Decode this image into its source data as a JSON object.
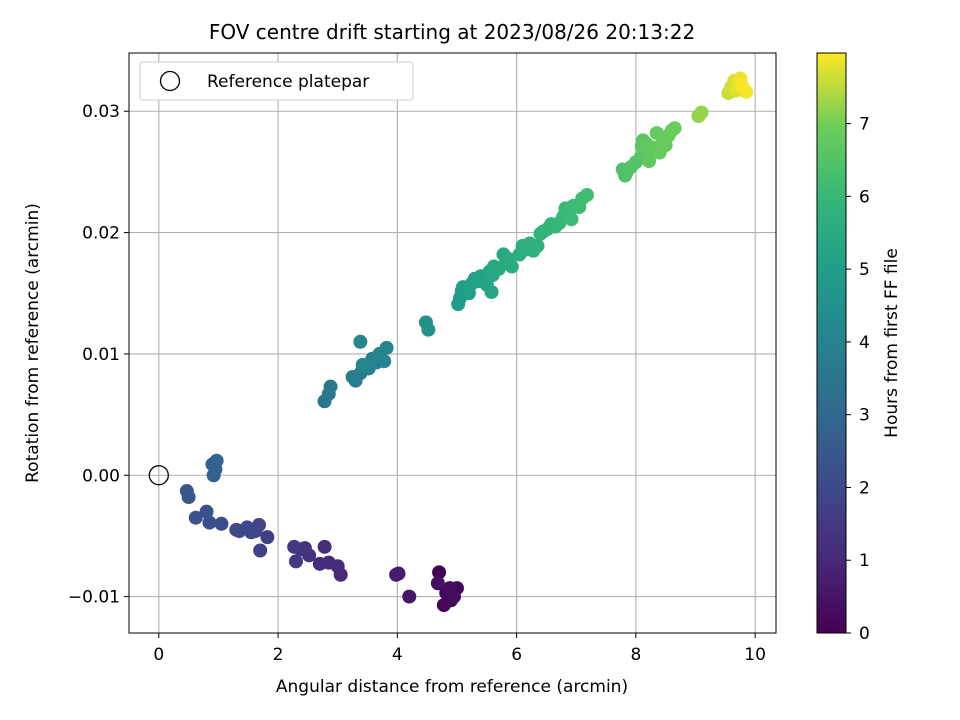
{
  "chart_data": {
    "type": "scatter",
    "title": "FOV centre drift starting at 2023/08/26 20:13:22",
    "xlabel": "Angular distance from reference (arcmin)",
    "ylabel": "Rotation from reference (arcmin)",
    "xlim": [
      -0.5,
      10.35
    ],
    "ylim": [
      -0.013,
      0.0348
    ],
    "xticks": [
      0,
      2,
      4,
      6,
      8,
      10
    ],
    "yticks": [
      -0.01,
      0.0,
      0.01,
      0.02,
      0.03
    ],
    "ytick_labels": [
      "−0.01",
      "0.00",
      "0.01",
      "0.02",
      "0.03"
    ],
    "grid": true,
    "legend": {
      "placement": "top-left",
      "entries": [
        "Reference platepar"
      ]
    },
    "reference_point": {
      "x": 0,
      "y": 0
    },
    "colorbar": {
      "label": "Hours from first FF file",
      "range": [
        0,
        7.97
      ],
      "ticks": [
        0,
        1,
        2,
        3,
        4,
        5,
        6,
        7
      ],
      "colormap": "viridis"
    },
    "points": [
      [
        4.7,
        -0.008,
        0.05
      ],
      [
        4.82,
        -0.0097,
        0.08
      ],
      [
        4.78,
        -0.0107,
        0.1
      ],
      [
        4.9,
        -0.0103,
        0.15
      ],
      [
        5.0,
        -0.0093,
        0.2
      ],
      [
        4.95,
        -0.01,
        0.25
      ],
      [
        4.88,
        -0.0093,
        0.3
      ],
      [
        4.68,
        -0.0089,
        0.35
      ],
      [
        4.2,
        -0.01,
        0.6
      ],
      [
        4.02,
        -0.0081,
        0.7
      ],
      [
        3.98,
        -0.0082,
        0.75
      ],
      [
        3.05,
        -0.0082,
        1.0
      ],
      [
        3.0,
        -0.0075,
        1.05
      ],
      [
        2.85,
        -0.0072,
        1.1
      ],
      [
        2.7,
        -0.0073,
        1.15
      ],
      [
        2.78,
        -0.0059,
        1.2
      ],
      [
        2.52,
        -0.0066,
        1.3
      ],
      [
        2.45,
        -0.006,
        1.35
      ],
      [
        2.38,
        -0.0061,
        1.4
      ],
      [
        2.3,
        -0.0071,
        1.45
      ],
      [
        2.27,
        -0.0059,
        1.5
      ],
      [
        1.82,
        -0.0051,
        1.7
      ],
      [
        1.7,
        -0.0062,
        1.75
      ],
      [
        1.68,
        -0.0041,
        1.8
      ],
      [
        1.62,
        -0.0046,
        1.85
      ],
      [
        1.55,
        -0.0047,
        1.9
      ],
      [
        1.48,
        -0.0043,
        1.95
      ],
      [
        1.35,
        -0.0046,
        2.0
      ],
      [
        1.3,
        -0.0045,
        2.05
      ],
      [
        1.05,
        -0.004,
        2.15
      ],
      [
        0.85,
        -0.0039,
        2.2
      ],
      [
        0.8,
        -0.003,
        2.25
      ],
      [
        0.62,
        -0.0035,
        2.3
      ],
      [
        0.5,
        -0.0018,
        2.4
      ],
      [
        0.47,
        -0.0013,
        2.45
      ],
      [
        0.92,
        0.0,
        2.7
      ],
      [
        0.95,
        0.0005,
        2.75
      ],
      [
        0.9,
        0.0009,
        2.8
      ],
      [
        0.97,
        0.0012,
        2.85
      ],
      [
        2.78,
        0.0061,
        3.5
      ],
      [
        2.85,
        0.0067,
        3.55
      ],
      [
        2.88,
        0.0073,
        3.6
      ],
      [
        3.25,
        0.0081,
        3.75
      ],
      [
        3.3,
        0.0078,
        3.8
      ],
      [
        3.38,
        0.0084,
        3.82
      ],
      [
        3.45,
        0.009,
        3.85
      ],
      [
        3.52,
        0.0088,
        3.9
      ],
      [
        3.58,
        0.0096,
        3.95
      ],
      [
        3.65,
        0.0093,
        4.0
      ],
      [
        3.7,
        0.01,
        4.05
      ],
      [
        3.78,
        0.0094,
        4.08
      ],
      [
        3.82,
        0.0105,
        4.1
      ],
      [
        3.38,
        0.011,
        4.12
      ],
      [
        3.42,
        0.0091,
        4.15
      ],
      [
        4.48,
        0.0126,
        4.5
      ],
      [
        4.52,
        0.012,
        4.55
      ],
      [
        5.02,
        0.0141,
        4.9
      ],
      [
        5.05,
        0.0146,
        4.93
      ],
      [
        5.08,
        0.0152,
        4.96
      ],
      [
        5.1,
        0.0155,
        5.0
      ],
      [
        5.15,
        0.0153,
        5.02
      ],
      [
        5.2,
        0.015,
        5.05
      ],
      [
        5.25,
        0.0158,
        5.08
      ],
      [
        5.3,
        0.0162,
        5.1
      ],
      [
        5.35,
        0.016,
        5.13
      ],
      [
        5.4,
        0.0164,
        5.16
      ],
      [
        5.45,
        0.0162,
        5.2
      ],
      [
        5.5,
        0.0157,
        5.23
      ],
      [
        5.55,
        0.0168,
        5.26
      ],
      [
        5.58,
        0.0151,
        5.3
      ],
      [
        5.6,
        0.0165,
        5.33
      ],
      [
        5.62,
        0.0172,
        5.36
      ],
      [
        5.7,
        0.017,
        5.4
      ],
      [
        5.78,
        0.0182,
        5.43
      ],
      [
        5.82,
        0.0175,
        5.46
      ],
      [
        5.88,
        0.0178,
        5.5
      ],
      [
        5.92,
        0.0172,
        5.53
      ],
      [
        6.05,
        0.0182,
        5.6
      ],
      [
        6.1,
        0.0189,
        5.63
      ],
      [
        6.15,
        0.0186,
        5.66
      ],
      [
        6.22,
        0.0191,
        5.7
      ],
      [
        6.28,
        0.0185,
        5.73
      ],
      [
        6.35,
        0.0189,
        5.76
      ],
      [
        6.4,
        0.0199,
        5.8
      ],
      [
        6.45,
        0.0201,
        5.83
      ],
      [
        6.52,
        0.0203,
        5.86
      ],
      [
        6.58,
        0.0207,
        5.9
      ],
      [
        6.65,
        0.0205,
        5.93
      ],
      [
        6.72,
        0.0208,
        5.96
      ],
      [
        6.78,
        0.0213,
        6.0
      ],
      [
        6.82,
        0.022,
        6.02
      ],
      [
        6.88,
        0.0217,
        6.05
      ],
      [
        6.92,
        0.0211,
        6.08
      ],
      [
        6.95,
        0.0222,
        6.1
      ],
      [
        7.05,
        0.0221,
        6.13
      ],
      [
        7.1,
        0.0228,
        6.16
      ],
      [
        7.18,
        0.0231,
        6.2
      ],
      [
        7.78,
        0.0252,
        6.4
      ],
      [
        7.82,
        0.0247,
        6.43
      ],
      [
        7.85,
        0.025,
        6.46
      ],
      [
        7.92,
        0.0254,
        6.5
      ],
      [
        8.0,
        0.0258,
        6.53
      ],
      [
        8.08,
        0.0262,
        6.56
      ],
      [
        8.1,
        0.0271,
        6.6
      ],
      [
        8.12,
        0.0276,
        6.63
      ],
      [
        8.15,
        0.0268,
        6.66
      ],
      [
        8.18,
        0.0273,
        6.7
      ],
      [
        8.22,
        0.0259,
        6.72
      ],
      [
        8.25,
        0.0265,
        6.74
      ],
      [
        8.3,
        0.027,
        6.76
      ],
      [
        8.35,
        0.0282,
        6.78
      ],
      [
        8.4,
        0.0266,
        6.8
      ],
      [
        8.45,
        0.0275,
        6.82
      ],
      [
        8.5,
        0.0272,
        6.84
      ],
      [
        8.55,
        0.028,
        6.86
      ],
      [
        8.6,
        0.0284,
        6.88
      ],
      [
        8.65,
        0.0286,
        6.9
      ],
      [
        9.05,
        0.0296,
        7.2
      ],
      [
        9.1,
        0.0299,
        7.25
      ],
      [
        9.55,
        0.0315,
        7.6
      ],
      [
        9.6,
        0.032,
        7.65
      ],
      [
        9.65,
        0.0325,
        7.7
      ],
      [
        9.68,
        0.0317,
        7.75
      ],
      [
        9.72,
        0.0322,
        7.8
      ],
      [
        9.75,
        0.0327,
        7.85
      ],
      [
        9.85,
        0.0316,
        7.9
      ],
      [
        9.78,
        0.0321,
        7.95
      ]
    ]
  }
}
